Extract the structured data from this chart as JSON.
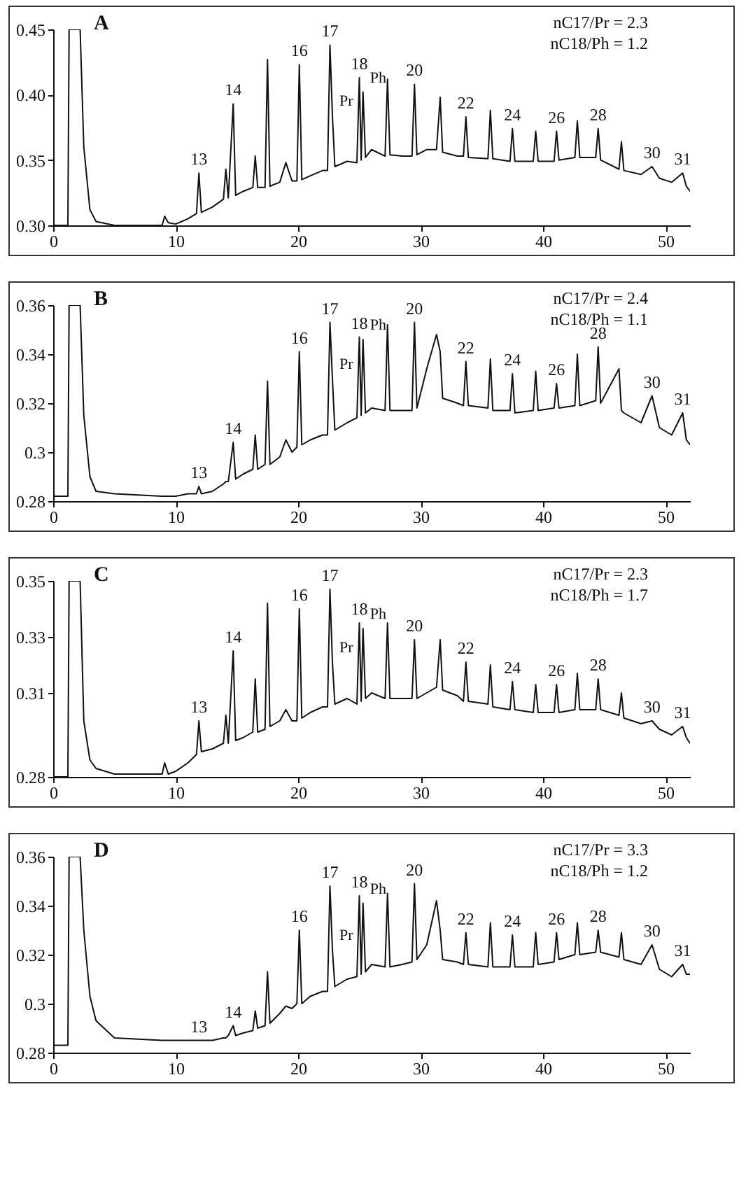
{
  "chart_data": [
    {
      "type": "line",
      "title": "A",
      "color": "#111111",
      "xlim": [
        0,
        52
      ],
      "xticks": [
        0,
        10,
        20,
        30,
        40,
        50
      ],
      "ylim": [
        0.3,
        0.45
      ],
      "yticks": [
        {
          "value": 0.3,
          "label": "0.30"
        },
        0.35,
        {
          "value": 0.4,
          "label": "0.40"
        },
        0.45
      ],
      "x": [
        0,
        1.2,
        1.3,
        2.2,
        2.5,
        3,
        3.5,
        5,
        8.9,
        9.1,
        9.4,
        10,
        11,
        11.7,
        11.9,
        12.1,
        13,
        13.9,
        14.1,
        14.3,
        14.7,
        14.9,
        15.5,
        16.3,
        16.5,
        16.7,
        17.3,
        17.5,
        17.7,
        18.5,
        19,
        19.5,
        19.9,
        20.1,
        20.3,
        21,
        22,
        22.4,
        22.6,
        22.8,
        23,
        24,
        24.8,
        25,
        25.15,
        25.3,
        25.5,
        26,
        27.1,
        27.3,
        27.5,
        28.5,
        29.3,
        29.5,
        29.7,
        30.5,
        31.3,
        31.6,
        31.8,
        33,
        33.5,
        33.7,
        33.9,
        35.5,
        35.7,
        35.9,
        37.3,
        37.5,
        37.7,
        39.2,
        39.4,
        39.6,
        40.9,
        41.1,
        41.3,
        42.6,
        42.8,
        43,
        44.3,
        44.5,
        44.7,
        46.2,
        46.4,
        46.6,
        48,
        48.9,
        49.5,
        50.5,
        51.4,
        51.7,
        52
      ],
      "values": [
        0.3,
        0.3,
        0.45,
        0.45,
        0.36,
        0.312,
        0.303,
        0.3,
        0.3,
        0.307,
        0.302,
        0.301,
        0.305,
        0.309,
        0.34,
        0.31,
        0.314,
        0.32,
        0.343,
        0.321,
        0.393,
        0.323,
        0.326,
        0.329,
        0.353,
        0.329,
        0.329,
        0.427,
        0.33,
        0.333,
        0.348,
        0.334,
        0.334,
        0.423,
        0.335,
        0.338,
        0.342,
        0.342,
        0.438,
        0.384,
        0.345,
        0.349,
        0.348,
        0.413,
        0.35,
        0.402,
        0.352,
        0.358,
        0.353,
        0.412,
        0.354,
        0.353,
        0.353,
        0.408,
        0.354,
        0.358,
        0.358,
        0.398,
        0.356,
        0.353,
        0.353,
        0.383,
        0.352,
        0.351,
        0.388,
        0.351,
        0.349,
        0.374,
        0.349,
        0.349,
        0.372,
        0.349,
        0.349,
        0.372,
        0.35,
        0.352,
        0.38,
        0.352,
        0.352,
        0.374,
        0.35,
        0.343,
        0.364,
        0.342,
        0.339,
        0.345,
        0.336,
        0.333,
        0.34,
        0.33,
        0.326
      ],
      "annotations": [
        "nC17/Pr = 2.3",
        "nC18/Ph = 1.2",
        {
          "text": "13",
          "x": 11.9,
          "y": 0.34
        },
        {
          "text": "14",
          "x": 14.7,
          "y": 0.393
        },
        {
          "text": "16",
          "x": 20.1,
          "y": 0.423
        },
        {
          "text": "17",
          "x": 22.6,
          "y": 0.438
        },
        {
          "text": "Pr",
          "x": 22.8,
          "y": 0.384
        },
        {
          "text": "18",
          "x": 25,
          "y": 0.413
        },
        {
          "text": "Ph",
          "x": 25.3,
          "y": 0.402
        },
        {
          "text": "20",
          "x": 29.5,
          "y": 0.408
        },
        {
          "text": "22",
          "x": 33.7,
          "y": 0.383
        },
        {
          "text": "24",
          "x": 37.5,
          "y": 0.374
        },
        {
          "text": "26",
          "x": 41.1,
          "y": 0.372
        },
        {
          "text": "28",
          "x": 44.5,
          "y": 0.374
        },
        {
          "text": "30",
          "x": 48.9,
          "y": 0.345
        },
        {
          "text": "31",
          "x": 51.4,
          "y": 0.34
        }
      ]
    },
    {
      "type": "line",
      "title": "B",
      "color": "#111111",
      "xlim": [
        0,
        52
      ],
      "xticks": [
        0,
        10,
        20,
        30,
        40,
        50
      ],
      "ylim": [
        0.28,
        0.36
      ],
      "yticks": [
        0.28,
        0.3,
        0.32,
        0.34,
        0.36
      ],
      "x": [
        0,
        1.2,
        1.3,
        2.2,
        2.5,
        3,
        3.5,
        5,
        8.9,
        9.1,
        9.4,
        10,
        11,
        11.7,
        11.9,
        12.1,
        13,
        13.9,
        14.1,
        14.3,
        14.7,
        14.9,
        15.5,
        16.3,
        16.5,
        16.7,
        17.3,
        17.5,
        17.7,
        18.5,
        19,
        19.5,
        19.9,
        20.1,
        20.3,
        21,
        22,
        22.4,
        22.6,
        22.8,
        23,
        24,
        24.8,
        25,
        25.15,
        25.3,
        25.5,
        26,
        27.1,
        27.3,
        27.5,
        28.5,
        29.3,
        29.5,
        29.7,
        30.5,
        31.3,
        31.6,
        31.8,
        33,
        33.5,
        33.7,
        33.9,
        35.5,
        35.7,
        35.9,
        37.3,
        37.5,
        37.7,
        39.2,
        39.4,
        39.6,
        40.9,
        41.1,
        41.3,
        42.6,
        42.8,
        43,
        44.3,
        44.5,
        44.7,
        46.2,
        46.4,
        46.6,
        48,
        48.9,
        49.5,
        50.5,
        51.4,
        51.7,
        52
      ],
      "values": [
        0.282,
        0.282,
        0.36,
        0.36,
        0.315,
        0.29,
        0.284,
        0.283,
        0.282,
        0.282,
        0.282,
        0.282,
        0.283,
        0.283,
        0.286,
        0.283,
        0.284,
        0.287,
        0.288,
        0.288,
        0.304,
        0.289,
        0.291,
        0.293,
        0.307,
        0.293,
        0.295,
        0.329,
        0.295,
        0.298,
        0.305,
        0.3,
        0.302,
        0.341,
        0.303,
        0.305,
        0.307,
        0.307,
        0.353,
        0.33,
        0.309,
        0.312,
        0.314,
        0.347,
        0.315,
        0.346,
        0.316,
        0.318,
        0.317,
        0.352,
        0.317,
        0.317,
        0.317,
        0.353,
        0.318,
        0.334,
        0.348,
        0.341,
        0.322,
        0.32,
        0.319,
        0.337,
        0.319,
        0.318,
        0.338,
        0.317,
        0.317,
        0.332,
        0.316,
        0.317,
        0.333,
        0.317,
        0.318,
        0.328,
        0.318,
        0.319,
        0.34,
        0.319,
        0.321,
        0.343,
        0.32,
        0.334,
        0.317,
        0.316,
        0.312,
        0.323,
        0.31,
        0.307,
        0.316,
        0.305,
        0.303
      ],
      "annotations": [
        "nC17/Pr = 2.4",
        "nC18/Ph = 1.1",
        {
          "text": "13",
          "x": 11.9,
          "y": 0.286
        },
        {
          "text": "14",
          "x": 14.7,
          "y": 0.304
        },
        {
          "text": "16",
          "x": 20.1,
          "y": 0.341
        },
        {
          "text": "17",
          "x": 22.6,
          "y": 0.353
        },
        {
          "text": "Pr",
          "x": 22.8,
          "y": 0.33
        },
        {
          "text": "18",
          "x": 25,
          "y": 0.347
        },
        {
          "text": "Ph",
          "x": 25.3,
          "y": 0.346
        },
        {
          "text": "20",
          "x": 29.5,
          "y": 0.353
        },
        {
          "text": "22",
          "x": 33.7,
          "y": 0.337
        },
        {
          "text": "24",
          "x": 37.5,
          "y": 0.332
        },
        {
          "text": "26",
          "x": 41.1,
          "y": 0.328
        },
        {
          "text": "28",
          "x": 44.5,
          "y": 0.343
        },
        {
          "text": "30",
          "x": 48.9,
          "y": 0.323
        },
        {
          "text": "31",
          "x": 51.4,
          "y": 0.316
        }
      ]
    },
    {
      "type": "line",
      "title": "C",
      "color": "#111111",
      "xlim": [
        0,
        52
      ],
      "xticks": [
        0,
        10,
        20,
        30,
        40,
        50
      ],
      "ylim": [
        0.28,
        0.35
      ],
      "yticks": [
        0.28,
        0.31,
        0.33,
        0.35
      ],
      "x": [
        0,
        1.2,
        1.3,
        2.2,
        2.5,
        3,
        3.5,
        5,
        8.9,
        9.1,
        9.4,
        10,
        11,
        11.7,
        11.9,
        12.1,
        13,
        13.9,
        14.1,
        14.3,
        14.7,
        14.9,
        15.5,
        16.3,
        16.5,
        16.7,
        17.3,
        17.5,
        17.7,
        18.5,
        19,
        19.5,
        19.9,
        20.1,
        20.3,
        21,
        22,
        22.4,
        22.6,
        22.8,
        23,
        24,
        24.8,
        25,
        25.15,
        25.3,
        25.5,
        26,
        27.1,
        27.3,
        27.5,
        28.5,
        29.3,
        29.5,
        29.7,
        30.5,
        31.3,
        31.6,
        31.8,
        33,
        33.5,
        33.7,
        33.9,
        35.5,
        35.7,
        35.9,
        37.3,
        37.5,
        37.7,
        39.2,
        39.4,
        39.6,
        40.9,
        41.1,
        41.3,
        42.6,
        42.8,
        43,
        44.3,
        44.5,
        44.7,
        46.2,
        46.4,
        46.6,
        48,
        48.9,
        49.5,
        50.5,
        51.4,
        51.7,
        52
      ],
      "values": [
        0.28,
        0.28,
        0.35,
        0.35,
        0.3,
        0.286,
        0.283,
        0.281,
        0.281,
        0.285,
        0.281,
        0.282,
        0.285,
        0.288,
        0.3,
        0.289,
        0.29,
        0.292,
        0.302,
        0.292,
        0.325,
        0.293,
        0.294,
        0.296,
        0.315,
        0.296,
        0.297,
        0.342,
        0.298,
        0.3,
        0.304,
        0.3,
        0.3,
        0.34,
        0.301,
        0.303,
        0.305,
        0.305,
        0.347,
        0.321,
        0.306,
        0.308,
        0.306,
        0.335,
        0.307,
        0.333,
        0.308,
        0.31,
        0.308,
        0.335,
        0.308,
        0.308,
        0.308,
        0.329,
        0.308,
        0.31,
        0.312,
        0.329,
        0.311,
        0.309,
        0.307,
        0.321,
        0.307,
        0.306,
        0.32,
        0.305,
        0.304,
        0.314,
        0.304,
        0.303,
        0.313,
        0.303,
        0.303,
        0.313,
        0.303,
        0.304,
        0.317,
        0.304,
        0.304,
        0.315,
        0.304,
        0.302,
        0.31,
        0.301,
        0.299,
        0.3,
        0.297,
        0.295,
        0.298,
        0.294,
        0.292
      ],
      "annotations": [
        "nC17/Pr = 2.3",
        "nC18/Ph = 1.7",
        {
          "text": "13",
          "x": 11.9,
          "y": 0.3
        },
        {
          "text": "14",
          "x": 14.7,
          "y": 0.325
        },
        {
          "text": "16",
          "x": 20.1,
          "y": 0.34
        },
        {
          "text": "17",
          "x": 22.6,
          "y": 0.347
        },
        {
          "text": "Pr",
          "x": 22.8,
          "y": 0.321
        },
        {
          "text": "18",
          "x": 25,
          "y": 0.335
        },
        {
          "text": "Ph",
          "x": 25.3,
          "y": 0.333
        },
        {
          "text": "20",
          "x": 29.5,
          "y": 0.329
        },
        {
          "text": "22",
          "x": 33.7,
          "y": 0.321
        },
        {
          "text": "24",
          "x": 37.5,
          "y": 0.314
        },
        {
          "text": "26",
          "x": 41.1,
          "y": 0.313
        },
        {
          "text": "28",
          "x": 44.5,
          "y": 0.315
        },
        {
          "text": "30",
          "x": 48.9,
          "y": 0.3
        },
        {
          "text": "31",
          "x": 51.4,
          "y": 0.298
        }
      ]
    },
    {
      "type": "line",
      "title": "D",
      "color": "#111111",
      "xlim": [
        0,
        52
      ],
      "xticks": [
        0,
        10,
        20,
        30,
        40,
        50
      ],
      "ylim": [
        0.28,
        0.36
      ],
      "yticks": [
        0.28,
        0.3,
        0.32,
        0.34,
        0.36
      ],
      "x": [
        0,
        1.2,
        1.3,
        2.2,
        2.5,
        3,
        3.5,
        5,
        8.9,
        9.1,
        9.4,
        10,
        11,
        11.7,
        11.9,
        12.1,
        13,
        13.9,
        14.1,
        14.3,
        14.7,
        14.9,
        15.5,
        16.3,
        16.5,
        16.7,
        17.3,
        17.5,
        17.7,
        18.5,
        19,
        19.5,
        19.9,
        20.1,
        20.3,
        21,
        22,
        22.4,
        22.6,
        22.8,
        23,
        24,
        24.8,
        25,
        25.15,
        25.3,
        25.5,
        26,
        27.1,
        27.3,
        27.5,
        28.5,
        29.3,
        29.5,
        29.7,
        30.5,
        31.3,
        31.6,
        31.8,
        33,
        33.5,
        33.7,
        33.9,
        35.5,
        35.7,
        35.9,
        37.3,
        37.5,
        37.7,
        39.2,
        39.4,
        39.6,
        40.9,
        41.1,
        41.3,
        42.6,
        42.8,
        43,
        44.3,
        44.5,
        44.7,
        46.2,
        46.4,
        46.6,
        48,
        48.9,
        49.5,
        50.5,
        51.4,
        51.7,
        52
      ],
      "values": [
        0.283,
        0.283,
        0.36,
        0.36,
        0.33,
        0.303,
        0.293,
        0.286,
        0.285,
        0.285,
        0.285,
        0.285,
        0.285,
        0.285,
        0.285,
        0.285,
        0.285,
        0.286,
        0.286,
        0.287,
        0.291,
        0.287,
        0.288,
        0.289,
        0.297,
        0.29,
        0.291,
        0.313,
        0.292,
        0.296,
        0.299,
        0.298,
        0.3,
        0.33,
        0.3,
        0.303,
        0.305,
        0.305,
        0.348,
        0.322,
        0.307,
        0.31,
        0.311,
        0.344,
        0.312,
        0.341,
        0.313,
        0.316,
        0.315,
        0.345,
        0.315,
        0.316,
        0.317,
        0.349,
        0.318,
        0.324,
        0.342,
        0.33,
        0.318,
        0.317,
        0.316,
        0.329,
        0.316,
        0.315,
        0.333,
        0.315,
        0.315,
        0.328,
        0.315,
        0.315,
        0.329,
        0.316,
        0.317,
        0.329,
        0.318,
        0.32,
        0.333,
        0.32,
        0.321,
        0.33,
        0.321,
        0.319,
        0.329,
        0.318,
        0.316,
        0.324,
        0.314,
        0.311,
        0.316,
        0.312,
        0.312
      ],
      "annotations": [
        "nC17/Pr = 3.3",
        "nC18/Ph = 1.2",
        {
          "text": "13",
          "x": 11.9,
          "y": 0.285
        },
        {
          "text": "14",
          "x": 14.7,
          "y": 0.291
        },
        {
          "text": "16",
          "x": 20.1,
          "y": 0.33
        },
        {
          "text": "17",
          "x": 22.6,
          "y": 0.348
        },
        {
          "text": "Pr",
          "x": 22.8,
          "y": 0.322
        },
        {
          "text": "18",
          "x": 25,
          "y": 0.344
        },
        {
          "text": "Ph",
          "x": 25.3,
          "y": 0.341
        },
        {
          "text": "20",
          "x": 29.5,
          "y": 0.349
        },
        {
          "text": "22",
          "x": 33.7,
          "y": 0.329
        },
        {
          "text": "24",
          "x": 37.5,
          "y": 0.328
        },
        {
          "text": "26",
          "x": 41.1,
          "y": 0.329
        },
        {
          "text": "28",
          "x": 44.5,
          "y": 0.33
        },
        {
          "text": "30",
          "x": 48.9,
          "y": 0.324
        },
        {
          "text": "31",
          "x": 51.4,
          "y": 0.316
        }
      ]
    }
  ]
}
